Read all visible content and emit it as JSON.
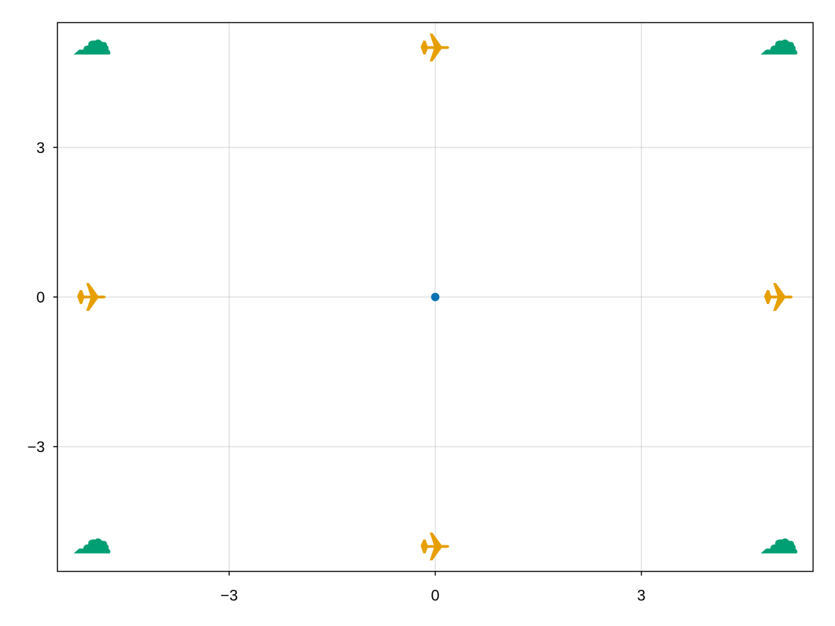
{
  "chart_data": {
    "type": "scatter",
    "title": "",
    "xlabel": "",
    "ylabel": "",
    "xlim": [
      -5.5,
      5.5
    ],
    "ylim": [
      -5.5,
      5.5
    ],
    "grid": true,
    "xticks": [
      -3,
      0,
      3
    ],
    "yticks": [
      -3,
      0,
      3
    ],
    "xtick_labels": [
      "−3",
      "0",
      "3"
    ],
    "ytick_labels": [
      "−3",
      "0",
      "3"
    ],
    "series": [
      {
        "marker": "circle",
        "color": "#0072b2",
        "points": [
          [
            0,
            0
          ]
        ]
      },
      {
        "marker": "airplane",
        "color": "#e69f00",
        "points": [
          [
            0,
            5
          ],
          [
            -5,
            0
          ],
          [
            5,
            0
          ],
          [
            0,
            -5
          ]
        ]
      },
      {
        "marker": "cloud",
        "color": "#009e73",
        "points": [
          [
            -5,
            5
          ],
          [
            5,
            5
          ],
          [
            -5,
            -5
          ],
          [
            5,
            -5
          ]
        ]
      }
    ]
  }
}
